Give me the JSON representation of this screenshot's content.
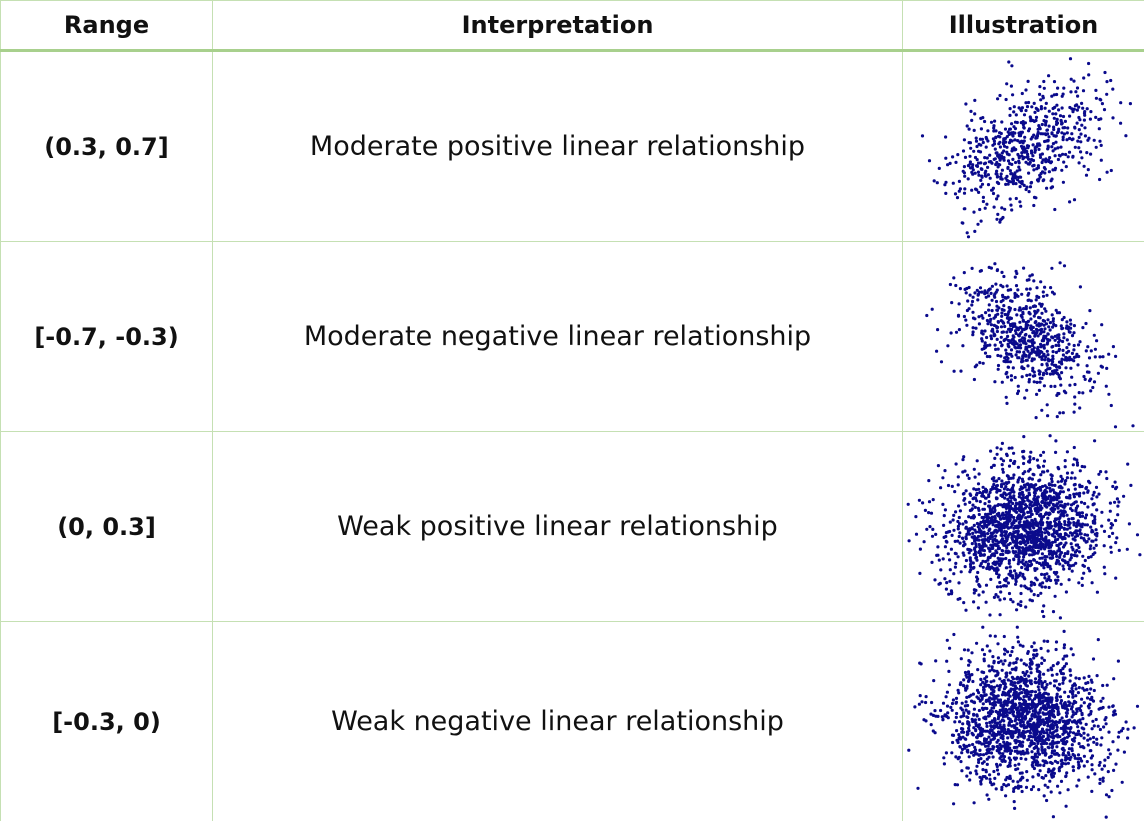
{
  "table": {
    "header": [
      "Range",
      "Interpretation",
      "Illustration"
    ],
    "rows": [
      [
        "(0.3, 0.7]",
        "Moderate positive linear relationship"
      ],
      [
        "[-0.7, -0.3)",
        "Moderate negative linear relationship"
      ],
      [
        "(0, 0.3]",
        "Weak positive linear relationship"
      ],
      [
        "[-0.3, 0)",
        "Weak negative linear relationship"
      ]
    ]
  }
}
